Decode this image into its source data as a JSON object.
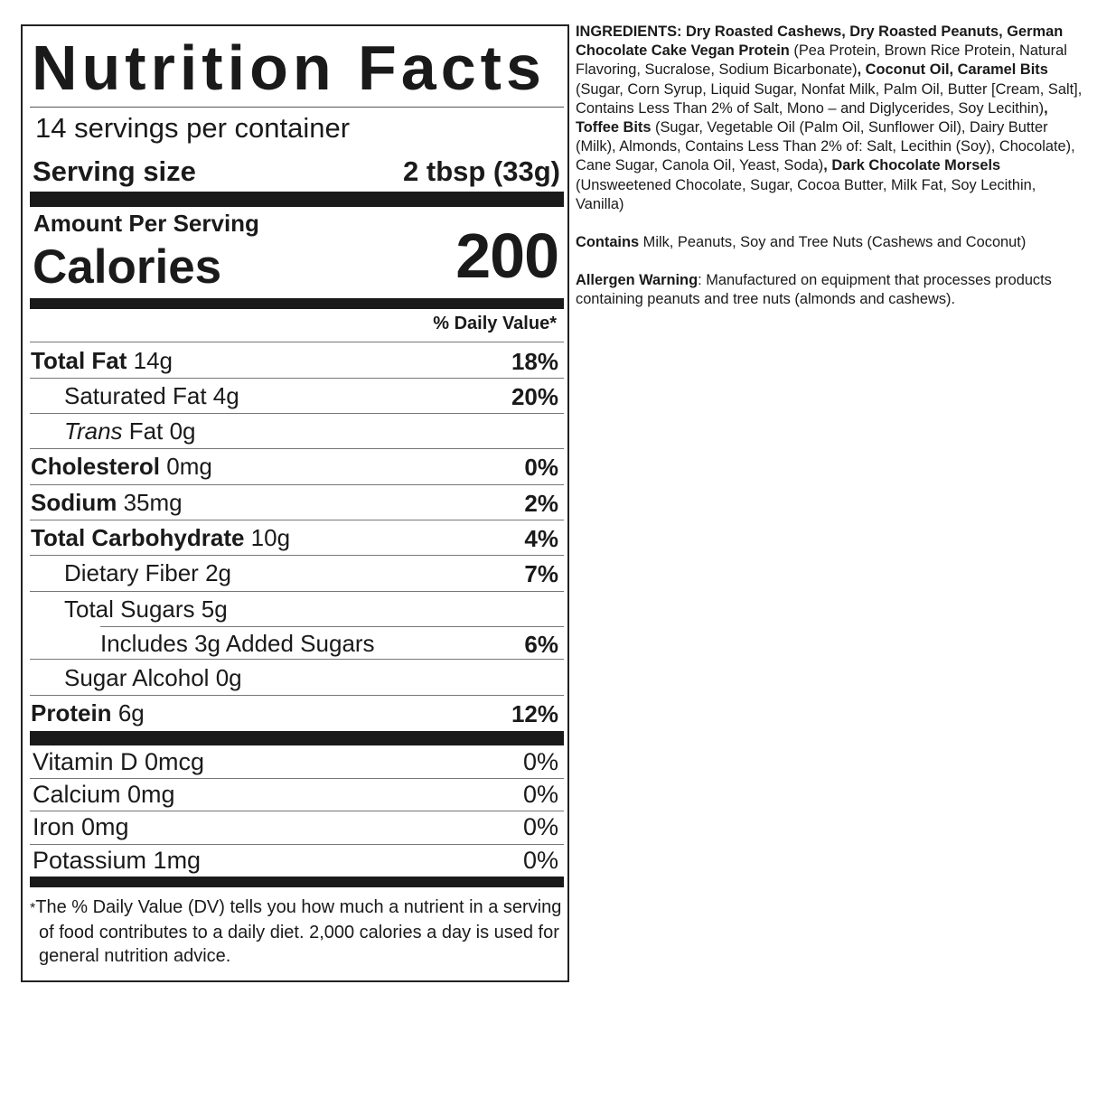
{
  "label": {
    "title": "Nutrition Facts",
    "servings_per_container": "14 servings per container",
    "serving_size_label": "Serving size",
    "serving_size_value": "2 tbsp (33g)",
    "amount_per_serving": "Amount Per Serving",
    "calories_label": "Calories",
    "calories_value": "200",
    "dv_header": "% Daily Value*",
    "nutrients": [
      {
        "name": "Total Fat",
        "amount": "14g",
        "dv": "18%"
      },
      {
        "name": "Saturated Fat",
        "amount": "4g",
        "dv": "20%"
      },
      {
        "prefix": "Trans",
        "name": "Fat",
        "amount": "0g",
        "dv": ""
      },
      {
        "name": "Cholesterol",
        "amount": "0mg",
        "dv": "0%"
      },
      {
        "name": "Sodium",
        "amount": "35mg",
        "dv": "2%"
      },
      {
        "name": "Total Carbohydrate",
        "amount": "10g",
        "dv": "4%"
      },
      {
        "name": "Dietary Fiber",
        "amount": "2g",
        "dv": "7%"
      },
      {
        "name": "Total Sugars",
        "amount": "5g",
        "dv": ""
      },
      {
        "name": "Includes 3g Added Sugars",
        "amount": "",
        "dv": "6%"
      },
      {
        "name": "Sugar Alcohol",
        "amount": "0g",
        "dv": ""
      },
      {
        "name": "Protein",
        "amount": "6g",
        "dv": "12%"
      }
    ],
    "vitamins": [
      {
        "name": "Vitamin D 0mcg",
        "dv": "0%"
      },
      {
        "name": "Calcium 0mg",
        "dv": "0%"
      },
      {
        "name": "Iron 0mg",
        "dv": "0%"
      },
      {
        "name": "Potassium 1mg",
        "dv": "0%"
      }
    ],
    "footnote_star": "*",
    "footnote": "The % Daily Value (DV) tells you how much a nutrient in a serving of food contributes to a daily diet. 2,000 calories a day is used for general nutrition advice."
  },
  "ingredients": {
    "segments": [
      {
        "bold": true,
        "text": "INGREDIENTS: Dry Roasted Cashews, Dry Roasted Peanuts, German Chocolate Cake Vegan Protein"
      },
      {
        "bold": false,
        "text": " (Pea Protein, Brown Rice Protein, Natural Flavoring, Sucralose, Sodium Bicarbonate)"
      },
      {
        "bold": true,
        "text": ", Coconut Oil, Caramel Bits"
      },
      {
        "bold": false,
        "text": " (Sugar, Corn Syrup, Liquid Sugar, Nonfat Milk, Palm Oil, Butter [Cream, Salt], Contains Less Than 2% of Salt, Mono – and Diglycerides, Soy Lecithin)"
      },
      {
        "bold": true,
        "text": ", Toffee Bits"
      },
      {
        "bold": false,
        "text": " (Sugar, Vegetable Oil (Palm Oil, Sunflower Oil), Dairy Butter (Milk), Almonds, Contains Less Than 2% of: Salt, Lecithin (Soy), Chocolate), Cane Sugar, Canola Oil, Yeast, Soda)"
      },
      {
        "bold": true,
        "text": ", Dark Chocolate Morsels"
      },
      {
        "bold": false,
        "text": " (Unsweetened Chocolate, Sugar, Cocoa Butter, Milk Fat, Soy Lecithin, Vanilla)"
      }
    ],
    "contains_label": "Contains",
    "contains_text": " Milk, Peanuts, Soy and Tree Nuts (Cashews and Coconut)",
    "allergen_label": "Allergen Warning",
    "allergen_text": ": Manufactured on equipment that processes products containing peanuts and tree nuts (almonds and cashews)."
  }
}
